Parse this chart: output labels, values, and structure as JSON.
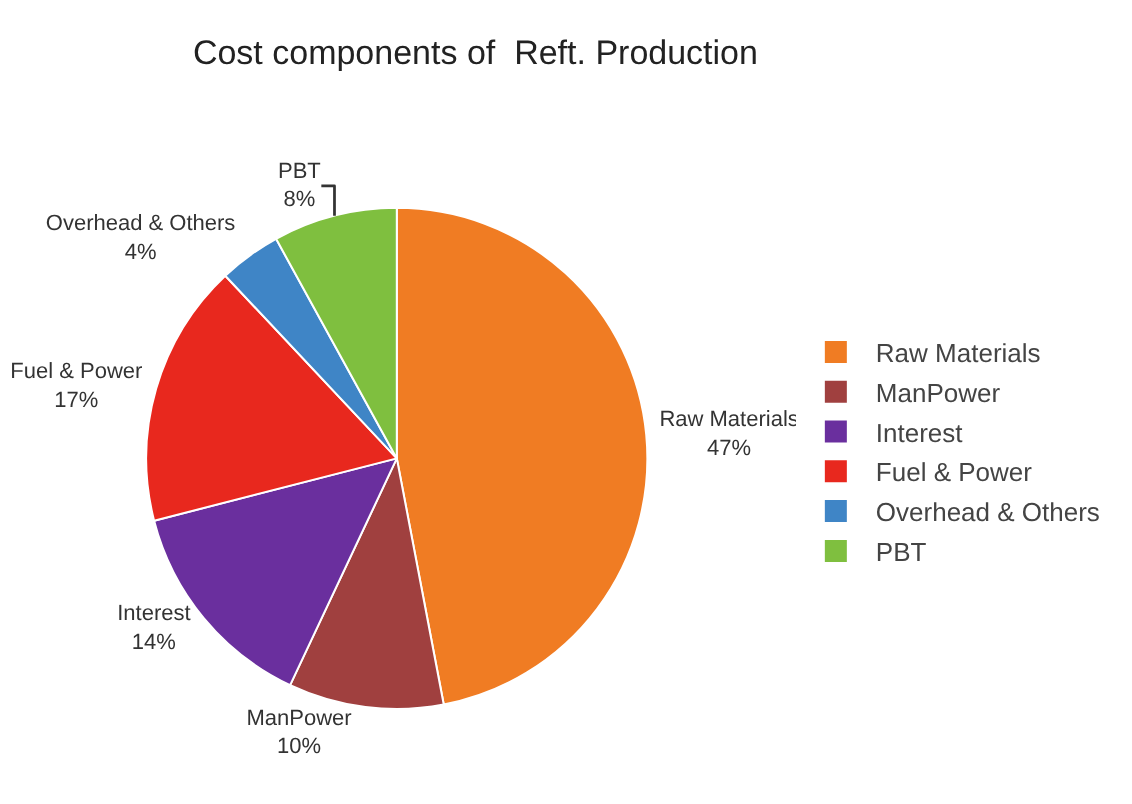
{
  "chart_data": {
    "type": "pie",
    "title": "Cost components of  Reft. Production",
    "categories": [
      "Raw Materials",
      "ManPower",
      "Interest",
      "Fuel & Power",
      "Overhead & Others",
      "PBT"
    ],
    "values": [
      47,
      10,
      14,
      17,
      4,
      8
    ],
    "value_labels": [
      "47%",
      "10%",
      "14%",
      "17%",
      "4%",
      "8%"
    ],
    "colors": [
      "#f07c23",
      "#a0403f",
      "#6a2f9e",
      "#e8281e",
      "#3f85c6",
      "#7fbf3f"
    ],
    "legend": "right"
  }
}
